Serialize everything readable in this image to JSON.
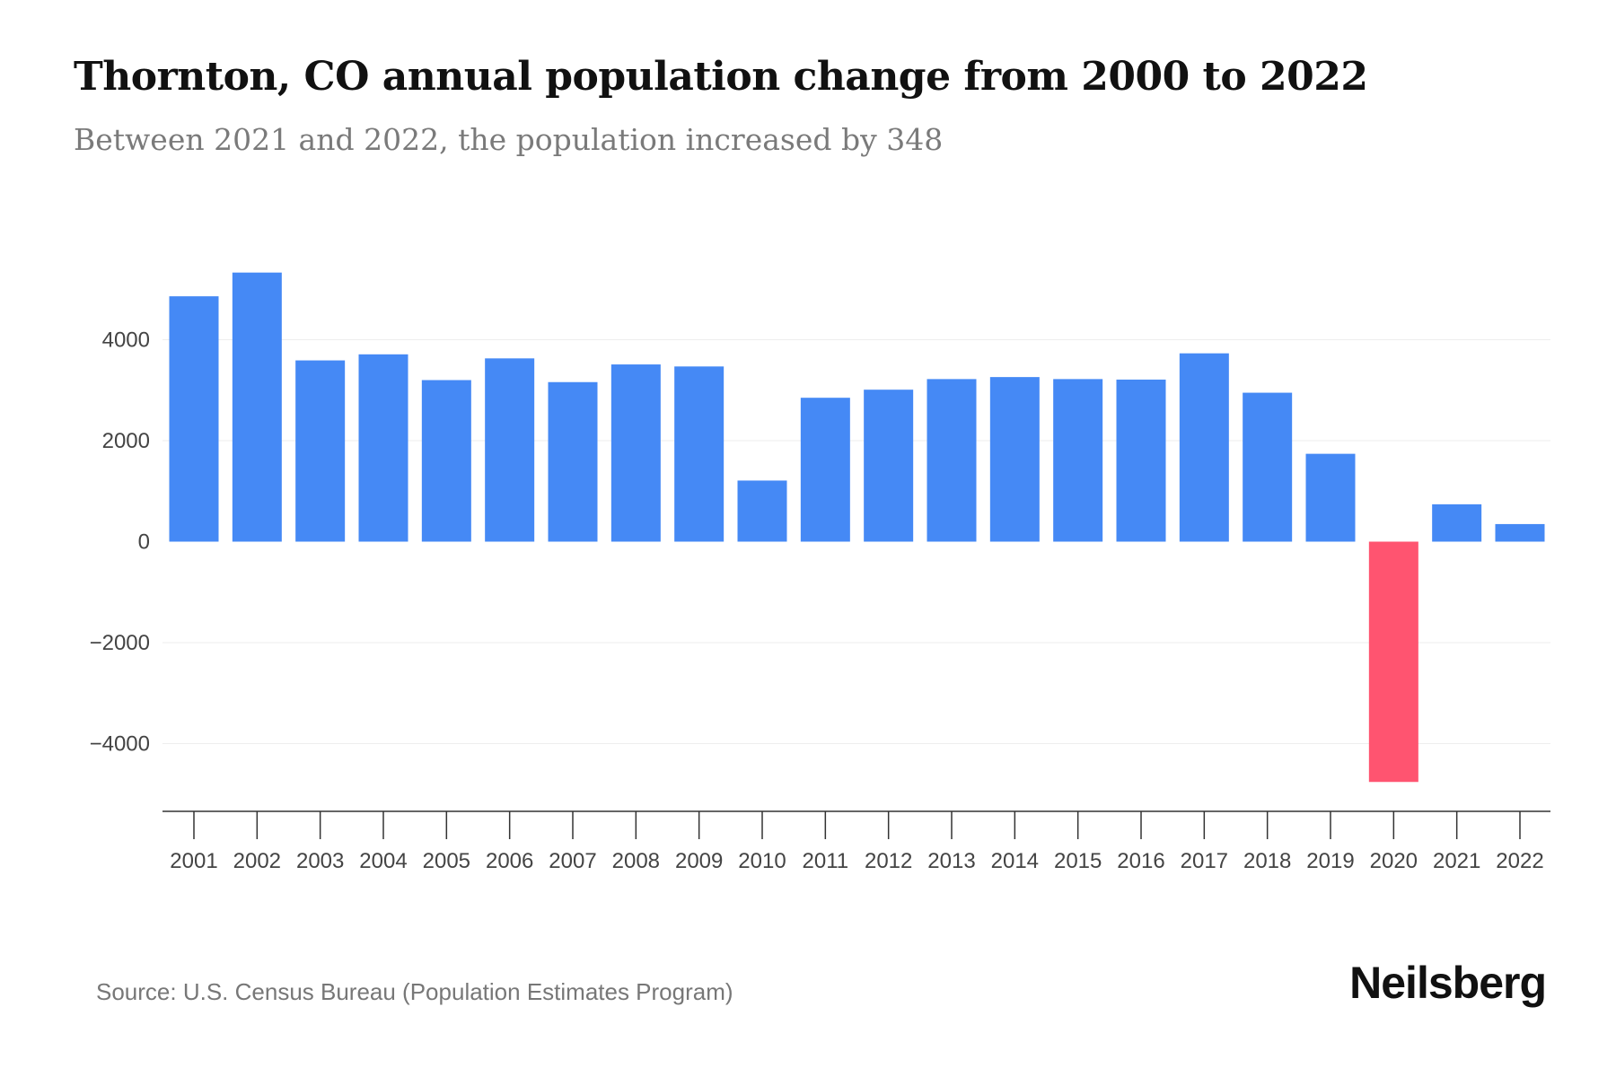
{
  "title": "Thornton, CO annual population change from 2000 to 2022",
  "subtitle": "Between 2021 and 2022, the population increased by 348",
  "source": "Source: U.S. Census Bureau (Population Estimates Program)",
  "logo": "Neilsberg",
  "colors": {
    "positive": "#4589f5",
    "negative": "#ff5470"
  },
  "chart_data": {
    "type": "bar",
    "title": "Thornton, CO annual population change from 2000 to 2022",
    "xlabel": "",
    "ylabel": "",
    "categories": [
      "2001",
      "2002",
      "2003",
      "2004",
      "2005",
      "2006",
      "2007",
      "2008",
      "2009",
      "2010",
      "2011",
      "2012",
      "2013",
      "2014",
      "2015",
      "2016",
      "2017",
      "2018",
      "2019",
      "2020",
      "2021",
      "2022"
    ],
    "values": [
      4860,
      5330,
      3590,
      3710,
      3200,
      3630,
      3160,
      3510,
      3470,
      1210,
      2850,
      3010,
      3220,
      3260,
      3220,
      3210,
      3730,
      2950,
      1740,
      -4760,
      740,
      348
    ],
    "yticks": [
      4000,
      2000,
      0,
      -2000,
      -4000
    ],
    "ytick_labels": [
      "4000",
      "2000",
      "0",
      "−2000",
      "−4000"
    ],
    "ylim": [
      -5400,
      6000
    ],
    "grid": true,
    "legend": "none"
  }
}
